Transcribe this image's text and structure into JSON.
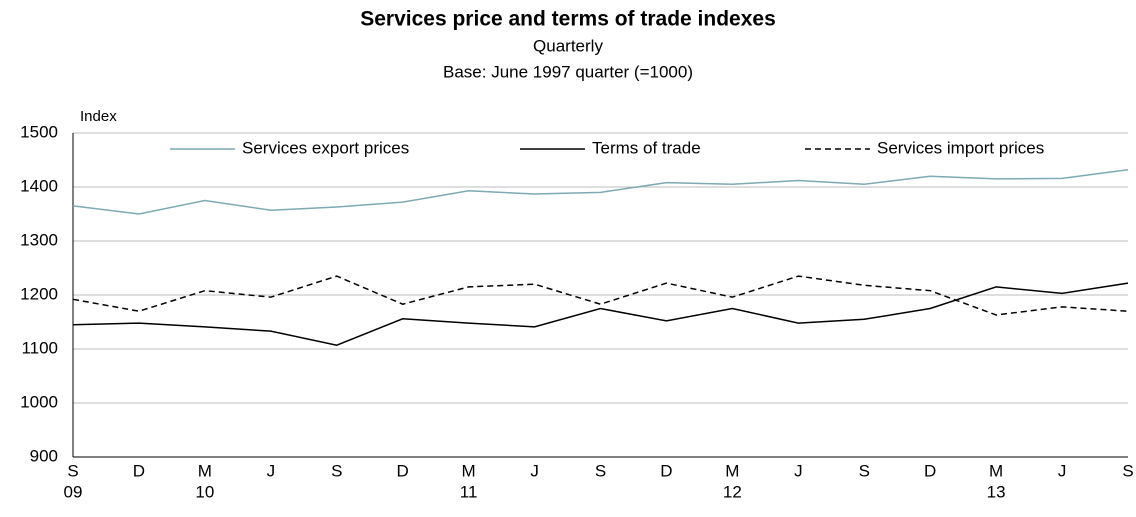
{
  "chart_data": {
    "type": "line",
    "title": "Services price and terms of trade indexes",
    "subtitle": [
      "Quarterly",
      "Base: June 1997 quarter (=1000)"
    ],
    "y_label": "Index",
    "categories": [
      "S",
      "D",
      "M",
      "J",
      "S",
      "D",
      "M",
      "J",
      "S",
      "D",
      "M",
      "J",
      "S",
      "D",
      "M",
      "J",
      "S"
    ],
    "category_years": [
      "09",
      null,
      "10",
      null,
      null,
      null,
      "11",
      null,
      null,
      null,
      "12",
      null,
      null,
      null,
      "13",
      null,
      null
    ],
    "series": [
      {
        "name": "Services export prices",
        "color": "#7fa9b3",
        "dashed": false,
        "values": [
          1365,
          1350,
          1375,
          1357,
          1363,
          1372,
          1393,
          1387,
          1390,
          1408,
          1405,
          1412,
          1405,
          1420,
          1415,
          1416,
          1432
        ]
      },
      {
        "name": "Terms of trade",
        "color": "#000000",
        "dashed": false,
        "values": [
          1145,
          1148,
          1141,
          1133,
          1107,
          1156,
          1148,
          1141,
          1175,
          1152,
          1175,
          1148,
          1155,
          1175,
          1215,
          1203,
          1222
        ]
      },
      {
        "name": "Services import prices",
        "color": "#000000",
        "dashed": true,
        "values": [
          1192,
          1170,
          1208,
          1196,
          1235,
          1183,
          1215,
          1220,
          1183,
          1222,
          1196,
          1235,
          1218,
          1208,
          1163,
          1178,
          1170
        ]
      }
    ],
    "ylim": [
      900,
      1500
    ],
    "yticks": [
      900,
      1000,
      1100,
      1200,
      1300,
      1400,
      1500
    ],
    "grid": true,
    "legend": "top"
  }
}
